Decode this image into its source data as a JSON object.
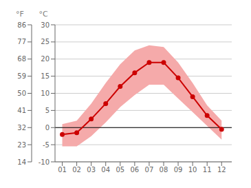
{
  "chart_data": {
    "type": "line",
    "x": [
      1,
      2,
      3,
      4,
      5,
      6,
      7,
      8,
      9,
      10,
      11,
      12
    ],
    "xlim": [
      0.5,
      12.7
    ],
    "xticks": [
      {
        "value": 1,
        "label": "01"
      },
      {
        "value": 2,
        "label": "02"
      },
      {
        "value": 3,
        "label": "03"
      },
      {
        "value": 4,
        "label": "04"
      },
      {
        "value": 5,
        "label": "05"
      },
      {
        "value": 6,
        "label": "06"
      },
      {
        "value": 7,
        "label": "07"
      },
      {
        "value": 8,
        "label": "08"
      },
      {
        "value": 9,
        "label": "09"
      },
      {
        "value": 10,
        "label": "10"
      },
      {
        "value": 11,
        "label": "11"
      },
      {
        "value": 12,
        "label": "12"
      }
    ],
    "ylabel": "°C",
    "ylim": [
      -10,
      30
    ],
    "yticks": [
      30,
      25,
      20,
      15,
      10,
      5,
      0,
      -5,
      -10
    ],
    "y2label": "°F",
    "y2lim": [
      14,
      86
    ],
    "y2ticks": [
      86,
      77,
      68,
      59,
      50,
      41,
      32,
      23,
      14
    ],
    "grid": true,
    "hlines": [
      0
    ],
    "series": [
      {
        "type": "line",
        "color": "#cc0000",
        "marker": "o",
        "values": [
          -2.0,
          -1.5,
          2.5,
          7.0,
          12.0,
          16.0,
          19.0,
          19.0,
          14.5,
          9.0,
          3.5,
          -0.5
        ]
      },
      {
        "type": "band",
        "color": "#f5aaaa",
        "low": [
          -5.5,
          -5.5,
          -2.5,
          1.5,
          6.0,
          9.5,
          12.5,
          12.5,
          8.5,
          4.5,
          0.5,
          -3.5
        ],
        "high": [
          1.0,
          2.0,
          7.0,
          13.0,
          18.5,
          22.5,
          24.0,
          23.5,
          19.0,
          13.0,
          6.5,
          2.0
        ]
      }
    ]
  }
}
